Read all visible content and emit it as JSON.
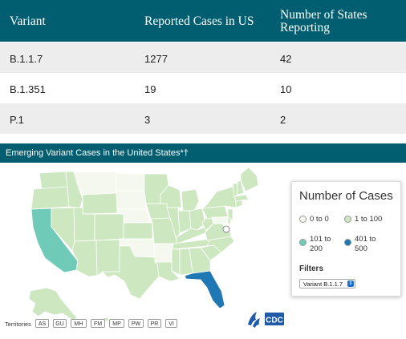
{
  "table": {
    "headers": [
      "Variant",
      "Reported Cases in US",
      "Number of States",
      "Reporting"
    ],
    "rows": [
      {
        "variant": "B.1.1.7",
        "cases": "1277",
        "states": "42"
      },
      {
        "variant": "B.1.351",
        "cases": "19",
        "states": "10"
      },
      {
        "variant": "P.1",
        "cases": "3",
        "states": "2"
      }
    ]
  },
  "map": {
    "title": "Emerging Variant Cases in the United States*†",
    "colors": {
      "0_to_0": "#f5f8ee",
      "1_to_100": "#cde8c0",
      "101_to_200": "#6fcbb8",
      "401_to_500": "#1f77b4"
    },
    "highlighted_states": {
      "CA": "101 to 200",
      "FL": "401 to 500"
    }
  },
  "legend": {
    "title": "Number of Cases",
    "items": [
      {
        "label_1": "0 to 0",
        "label_2": ""
      },
      {
        "label_1": "1 to 100",
        "label_2": ""
      },
      {
        "label_1": "101 to",
        "label_2": "200"
      },
      {
        "label_1": "401 to",
        "label_2": "500"
      }
    ],
    "filters_label": "Filters",
    "select_value": "Variant B.1.1.7"
  },
  "territories": {
    "label": "Territories",
    "items": [
      "AS",
      "GU",
      "MH",
      "FM",
      "MP",
      "PW",
      "PR",
      "VI"
    ]
  },
  "logos": {
    "cdc_text": "CDC",
    "hhs": "hhs-eagle-icon"
  }
}
